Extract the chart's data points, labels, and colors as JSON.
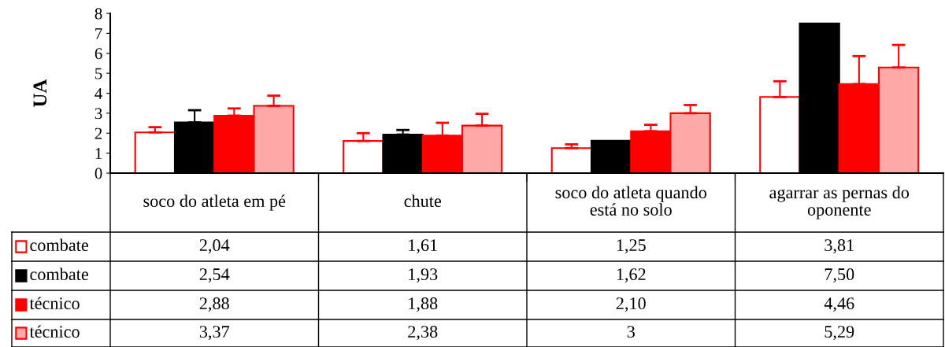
{
  "chart_data": {
    "type": "bar",
    "ylabel": "UA",
    "categories": [
      "soco do atleta em pé",
      "chute",
      "soco do atleta quando\nestá no solo",
      "agarrar as pernas do\noponente"
    ],
    "series": [
      {
        "name": "combate",
        "color": "#ffffff",
        "values": [
          2.04,
          1.61,
          1.25,
          3.81
        ],
        "value_labels": [
          "2,04",
          "1,61",
          "1,25",
          "3,81"
        ],
        "errors": [
          [
            2.04,
            2.3
          ],
          [
            1.61,
            2.0
          ],
          [
            1.25,
            1.44
          ],
          [
            3.81,
            4.6
          ]
        ]
      },
      {
        "name": "combate",
        "color": "#000000",
        "values": [
          2.54,
          1.93,
          1.62,
          7.5
        ],
        "value_labels": [
          "2,54",
          "1,93",
          "1,62",
          "7,50"
        ],
        "errors": [
          [
            2.54,
            3.15
          ],
          [
            1.93,
            2.16
          ],
          null,
          null
        ]
      },
      {
        "name": "técnico",
        "color": "#ff0000",
        "values": [
          2.88,
          1.88,
          2.1,
          4.46
        ],
        "value_labels": [
          "2,88",
          "1,88",
          "2,10",
          "4,46"
        ],
        "errors": [
          [
            2.88,
            3.24
          ],
          [
            1.88,
            2.52
          ],
          [
            2.1,
            2.42
          ],
          [
            4.46,
            5.86
          ]
        ]
      },
      {
        "name": "técnico",
        "color": "#ffa8a8",
        "values": [
          3.37,
          2.38,
          3,
          5.29
        ],
        "value_labels": [
          "3,37",
          "2,38",
          "3",
          "5,29"
        ],
        "errors": [
          [
            3.37,
            3.88
          ],
          [
            2.38,
            2.97
          ],
          [
            3,
            3.41
          ],
          [
            5.29,
            6.42
          ]
        ]
      }
    ],
    "ylim": [
      0,
      8
    ],
    "yticks": [
      0,
      1,
      2,
      3,
      4,
      5,
      6,
      7,
      8
    ],
    "grid": false,
    "legend": "bottom left"
  }
}
